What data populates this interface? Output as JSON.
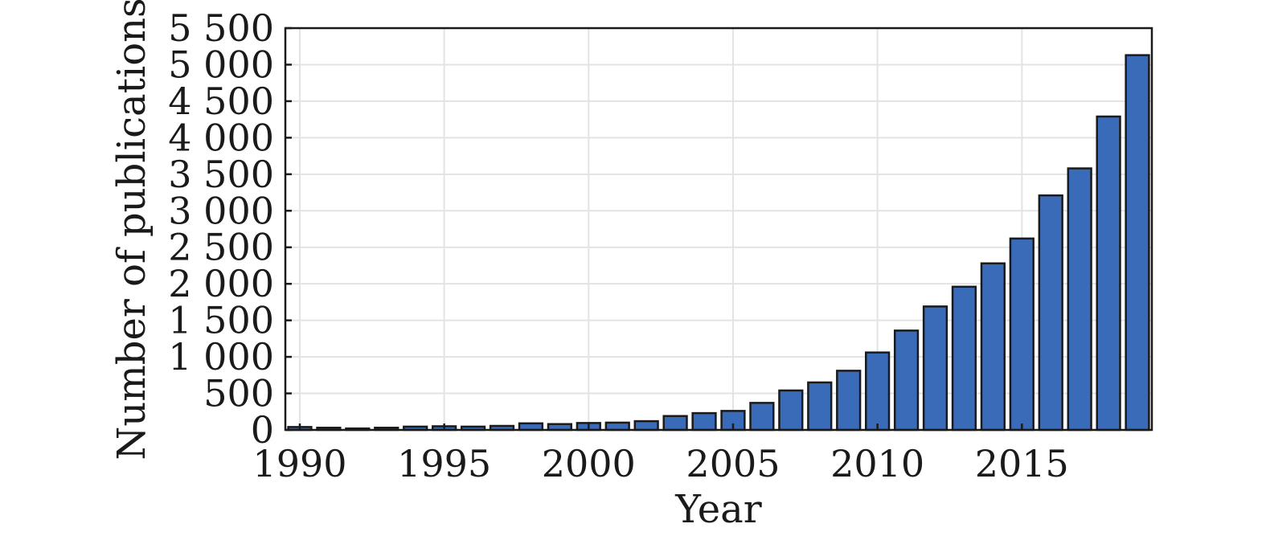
{
  "chart_data": {
    "type": "bar",
    "title": "",
    "xlabel": "Year",
    "ylabel": "Number of publications",
    "bar_color": "#3a6bb8",
    "edge_color": "#1a1a1a",
    "grid": true,
    "legend": false,
    "xlim": [
      1989.5,
      2019.5
    ],
    "ylim": [
      0,
      5500
    ],
    "x_ticks": [
      1990,
      1995,
      2000,
      2005,
      2010,
      2015
    ],
    "x_tick_labels": [
      "1990",
      "1995",
      "2000",
      "2005",
      "2010",
      "2015"
    ],
    "y_ticks": [
      0,
      500,
      1000,
      1500,
      2000,
      2500,
      3000,
      3500,
      4000,
      4500,
      5000,
      5500
    ],
    "y_tick_labels": [
      "0",
      "500",
      "1 000",
      "1 500",
      "2 000",
      "2 500",
      "3 000",
      "3 500",
      "4 000",
      "4 500",
      "5 000",
      "5 500"
    ],
    "categories": [
      1990,
      1991,
      1992,
      1993,
      1994,
      1995,
      1996,
      1997,
      1998,
      1999,
      2000,
      2001,
      2002,
      2003,
      2004,
      2005,
      2006,
      2007,
      2008,
      2009,
      2010,
      2011,
      2012,
      2013,
      2014,
      2015,
      2016,
      2017,
      2018,
      2019
    ],
    "values": [
      40,
      30,
      20,
      30,
      45,
      50,
      45,
      55,
      90,
      80,
      95,
      100,
      120,
      190,
      230,
      260,
      370,
      540,
      650,
      810,
      1060,
      1360,
      1690,
      1960,
      2280,
      2620,
      3210,
      3580,
      4290,
      5130
    ]
  }
}
